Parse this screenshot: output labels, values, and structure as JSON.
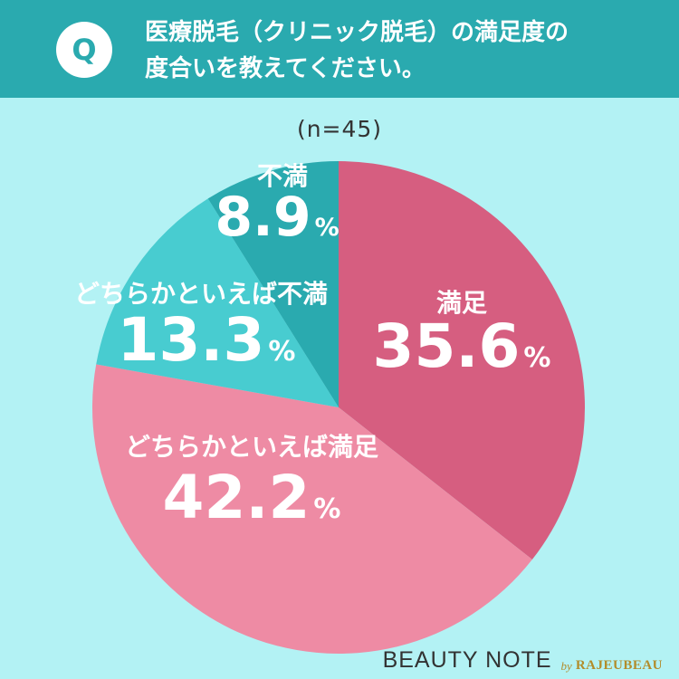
{
  "header": {
    "badge": "Q",
    "question_line1": "医療脱毛（クリニック脱毛）の満足度の",
    "question_line2": "度合いを教えてください。"
  },
  "sample_size": "(n=45)",
  "chart_data": {
    "type": "pie",
    "unit": "%",
    "start": "12 o'clock, clockwise",
    "slices": [
      {
        "label": "満足",
        "value": 35.6,
        "display": "35.6",
        "color": "#d65e80"
      },
      {
        "label": "どちらかといえば満足",
        "value": 42.2,
        "display": "42.2",
        "color": "#ee8ba4"
      },
      {
        "label": "どちらかといえば不満",
        "value": 13.3,
        "display": "13.3",
        "color": "#48ccd0"
      },
      {
        "label": "不満",
        "value": 8.9,
        "display": "8.9",
        "color": "#2aaaaf"
      }
    ]
  },
  "footer": {
    "brand": "BEAUTY NOTE",
    "partner_by": "by",
    "partner_name": "RAJEUBEAU"
  }
}
